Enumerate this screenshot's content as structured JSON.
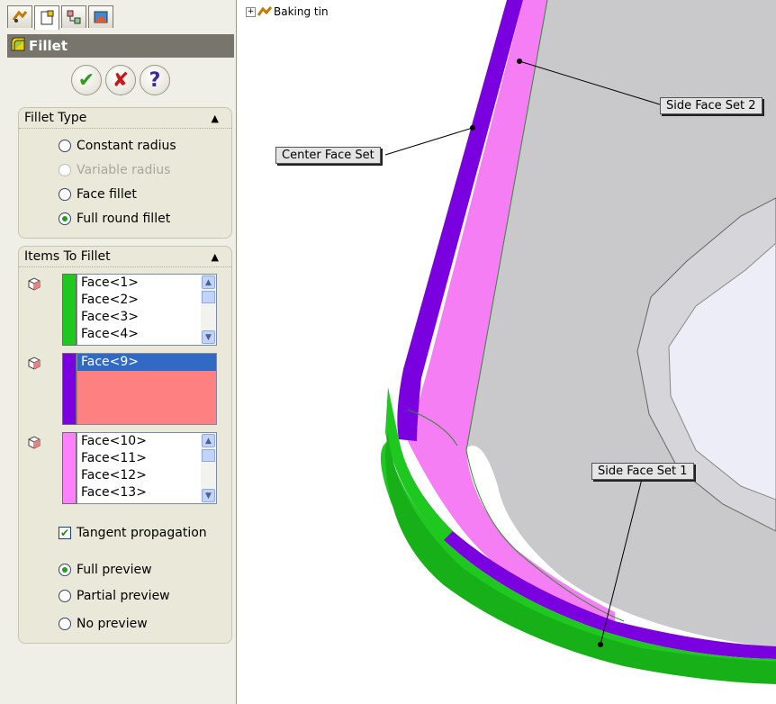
{
  "tabs": [
    "feature-manager",
    "property-manager",
    "configuration-manager",
    "display-manager"
  ],
  "pm_title": "Fillet",
  "buttons": {
    "ok": "✔",
    "cancel": "✘",
    "help": "?"
  },
  "fillet_type": {
    "header": "Fillet Type",
    "options": [
      {
        "label": "Constant radius",
        "state": "unchecked"
      },
      {
        "label": "Variable radius",
        "state": "disabled"
      },
      {
        "label": "Face fillet",
        "state": "unchecked"
      },
      {
        "label": "Full round fillet",
        "state": "checked"
      }
    ]
  },
  "items_to_fillet": {
    "header": "Items To Fillet",
    "side_face_set_1": {
      "color": "#1ec81e",
      "items": [
        "Face<1>",
        "Face<2>",
        "Face<3>",
        "Face<4>"
      ]
    },
    "center_face_set": {
      "color": "#7a00e0",
      "items": [
        "Face<9>"
      ],
      "selected_index": 0,
      "list_bg": "#ff8080"
    },
    "side_face_set_2": {
      "color": "#ff80ff",
      "items": [
        "Face<10>",
        "Face<11>",
        "Face<12>",
        "Face<13>"
      ]
    },
    "tangent_propagation": {
      "label": "Tangent propagation",
      "checked": true
    },
    "preview": [
      {
        "label": "Full preview",
        "state": "checked"
      },
      {
        "label": "Partial preview",
        "state": "unchecked"
      },
      {
        "label": "No preview",
        "state": "unchecked"
      }
    ]
  },
  "tree": {
    "node_label": "Baking tin"
  },
  "callouts": {
    "side_face_set_2": "Side Face Set 2",
    "center_face_set": "Center Face Set",
    "side_face_set_1": "Side Face Set 1"
  },
  "colors": {
    "purple_face": "#7a00e0",
    "pink_face": "#f57ef5",
    "green_face": "#1ec81e",
    "header_bar": "#77756c",
    "panel_bg": "#f0efe7"
  }
}
